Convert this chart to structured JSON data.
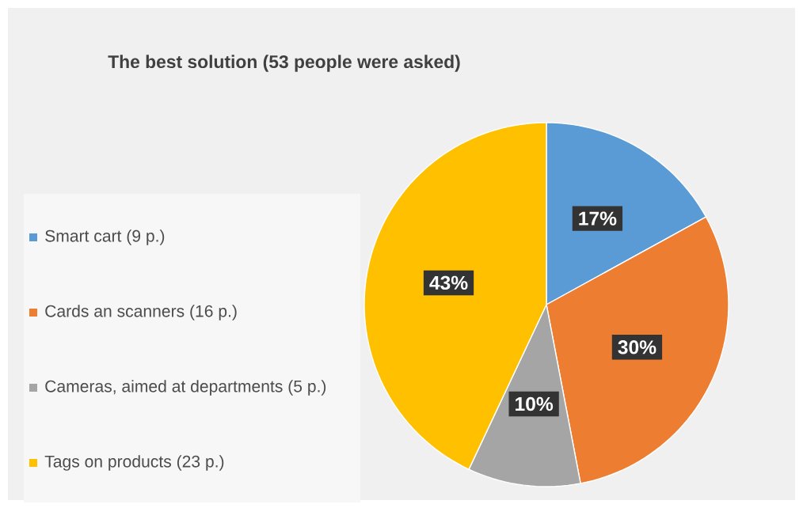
{
  "chart_data": {
    "type": "pie",
    "title": "The best solution (53 people were asked)",
    "categories": [
      "Smart cart (9 p.)",
      "Cards an scanners (16 p.)",
      "Cameras, aimed at departments (5 p.)",
      "Tags on products (23 p.)"
    ],
    "values": [
      17,
      30,
      10,
      43
    ],
    "colors": [
      "#5b9bd5",
      "#ed7d31",
      "#a5a5a5",
      "#ffc000"
    ],
    "value_labels": [
      "17%",
      "30%",
      "10%",
      "43%"
    ],
    "legend": "left"
  }
}
